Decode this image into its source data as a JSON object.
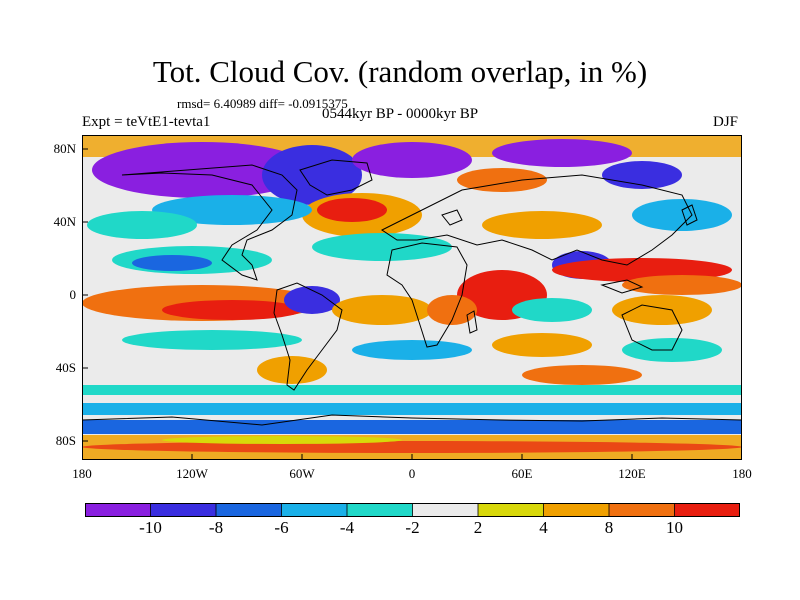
{
  "title": "Tot. Cloud Cov. (random overlap, in %)",
  "stats": "rmsd= 6.40989 diff= -0.0915375",
  "period": "0544kyr BP - 0000kyr BP",
  "experiment": "Expt = teVtE1-tevta1",
  "season": "DJF",
  "lat_labels": [
    "80N",
    "40N",
    "0",
    "40S",
    "80S"
  ],
  "lon_labels": [
    "180",
    "120W",
    "60W",
    "0",
    "60E",
    "120E",
    "180"
  ],
  "colorbar": {
    "colors": [
      "#8a1fe0",
      "#3a2ee0",
      "#1a66e0",
      "#1ab0e8",
      "#20d8c8",
      "#ebebeb",
      "#d8d80a",
      "#f0a000",
      "#f07010",
      "#e81e10"
    ],
    "labels": [
      "-10",
      "-8",
      "-6",
      "-4",
      "-2",
      "2",
      "4",
      "8",
      "10"
    ]
  }
}
